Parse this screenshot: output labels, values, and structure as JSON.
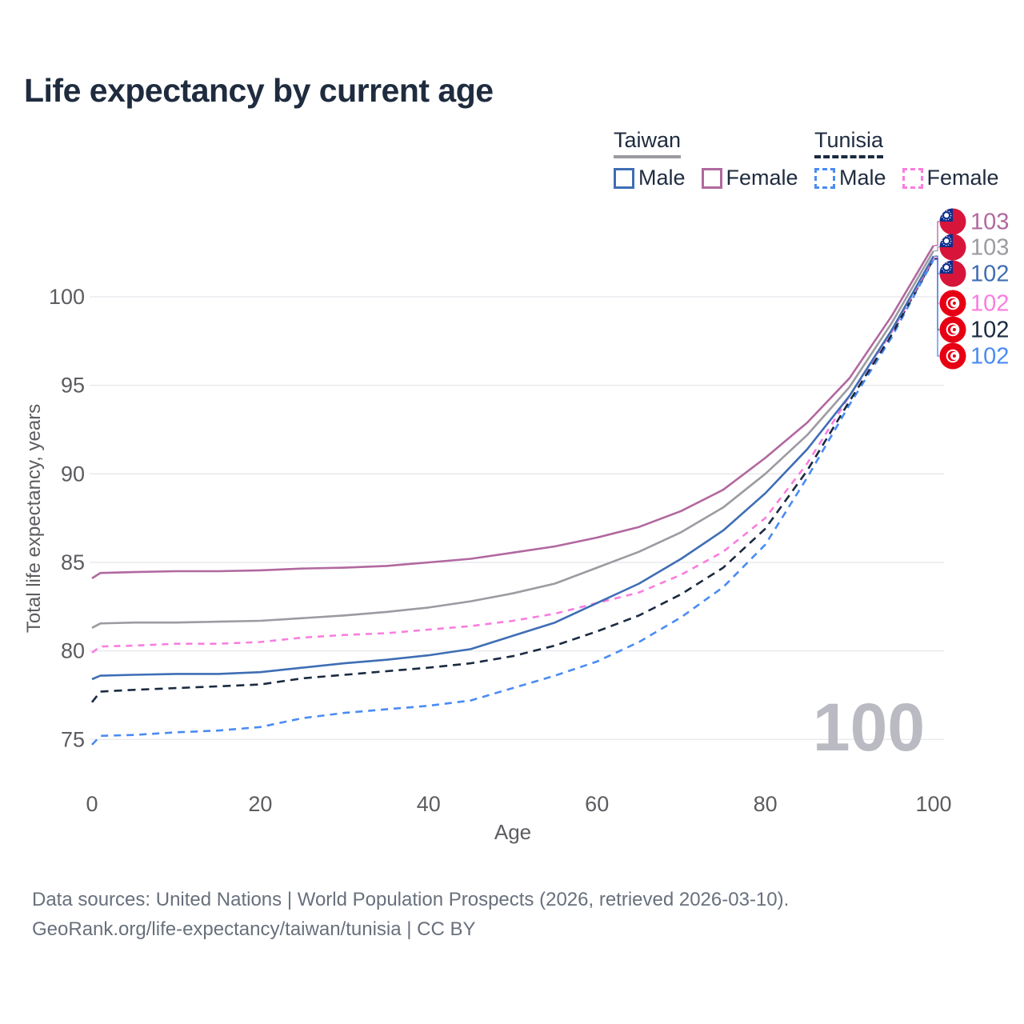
{
  "title": "Life expectancy by current age",
  "legend": {
    "groups": [
      {
        "label": "Taiwan",
        "underline_color": "#9b9ba1",
        "underline_style": "solid",
        "entries": [
          {
            "label": "Male",
            "color": "#3f6eb5",
            "style": "solid"
          },
          {
            "label": "Female",
            "color": "#b1689f",
            "style": "solid"
          }
        ]
      },
      {
        "label": "Tunisia",
        "underline_color": "#1a2a40",
        "underline_style": "dashed",
        "entries": [
          {
            "label": "Male",
            "color": "#4a8bf4",
            "style": "dashed"
          },
          {
            "label": "Female",
            "color": "#f97ddf",
            "style": "dashed"
          }
        ]
      }
    ]
  },
  "chart_data": {
    "type": "line",
    "title": "Life expectancy by current age",
    "xlabel": "Age",
    "ylabel": "Total life expectancy, years",
    "xlim": [
      0,
      100
    ],
    "ylim": [
      73.5,
      104.5
    ],
    "x_ticks": [
      0,
      20,
      40,
      60,
      80,
      100
    ],
    "y_ticks": [
      75,
      80,
      85,
      90,
      95,
      100
    ],
    "grid": "horizontal-only",
    "grid_color": "#e8e8ed",
    "tick_color": "#5c5c61",
    "watermark": "100",
    "watermark_color": "#babac2",
    "legend_position": "top-right",
    "x": [
      0,
      1,
      5,
      10,
      15,
      20,
      25,
      30,
      35,
      40,
      45,
      50,
      55,
      60,
      65,
      70,
      75,
      80,
      85,
      90,
      95,
      100
    ],
    "series": [
      {
        "name": "Taiwan Female",
        "country": "Taiwan",
        "sex": "Female",
        "color": "#b1689f",
        "dash": "solid",
        "flag": "tw",
        "end_label": "103",
        "values": [
          84.1,
          84.4,
          84.45,
          84.5,
          84.5,
          84.55,
          84.65,
          84.7,
          84.8,
          85.0,
          85.2,
          85.55,
          85.9,
          86.4,
          87.0,
          87.9,
          89.1,
          90.9,
          92.9,
          95.4,
          98.9,
          102.9
        ]
      },
      {
        "name": "Taiwan Both sexes",
        "country": "Taiwan",
        "sex": "Both",
        "color": "#9b9ba1",
        "dash": "solid",
        "flag": "tw",
        "end_label": "103",
        "values": [
          81.3,
          81.55,
          81.6,
          81.6,
          81.65,
          81.7,
          81.85,
          82.0,
          82.2,
          82.45,
          82.8,
          83.25,
          83.8,
          84.7,
          85.6,
          86.7,
          88.1,
          90.0,
          92.2,
          94.9,
          98.5,
          102.6
        ]
      },
      {
        "name": "Taiwan Male",
        "country": "Taiwan",
        "sex": "Male",
        "color": "#3f6eb5",
        "dash": "solid",
        "flag": "tw",
        "end_label": "102",
        "values": [
          78.4,
          78.6,
          78.65,
          78.7,
          78.7,
          78.8,
          79.05,
          79.3,
          79.5,
          79.75,
          80.1,
          80.85,
          81.6,
          82.7,
          83.8,
          85.2,
          86.8,
          88.9,
          91.4,
          94.4,
          98.1,
          102.3
        ]
      },
      {
        "name": "Tunisia Female",
        "country": "Tunisia",
        "sex": "Female",
        "color": "#f97ddf",
        "dash": "dashed",
        "flag": "tn",
        "end_label": "102",
        "values": [
          79.9,
          80.25,
          80.3,
          80.4,
          80.4,
          80.5,
          80.75,
          80.9,
          81.0,
          81.2,
          81.4,
          81.7,
          82.1,
          82.7,
          83.3,
          84.3,
          85.6,
          87.5,
          90.6,
          94.4,
          98.0,
          102.2
        ]
      },
      {
        "name": "Tunisia Both sexes",
        "country": "Tunisia",
        "sex": "Both",
        "color": "#1a2a40",
        "dash": "dashed",
        "flag": "tn",
        "end_label": "102",
        "values": [
          77.1,
          77.7,
          77.8,
          77.9,
          78.0,
          78.1,
          78.45,
          78.65,
          78.85,
          79.05,
          79.3,
          79.7,
          80.3,
          81.1,
          82.0,
          83.2,
          84.7,
          86.9,
          90.2,
          94.1,
          97.85,
          102.15
        ]
      },
      {
        "name": "Tunisia Male",
        "country": "Tunisia",
        "sex": "Male",
        "color": "#4a8bf4",
        "dash": "dashed",
        "flag": "tn",
        "end_label": "102",
        "values": [
          74.7,
          75.2,
          75.25,
          75.4,
          75.5,
          75.7,
          76.2,
          76.5,
          76.7,
          76.9,
          77.2,
          77.9,
          78.6,
          79.4,
          80.5,
          81.9,
          83.6,
          86.0,
          89.8,
          93.9,
          97.7,
          102.1
        ]
      }
    ],
    "flag_colors": {
      "tw_red": "#d7153a",
      "tw_blue": "#0b2e8e",
      "tn_red": "#e70013"
    }
  },
  "footer": {
    "line1": "Data sources: United Nations | World Population Prospects (2026, retrieved 2026-03-10).",
    "line2": "GeoRank.org/life-expectancy/taiwan/tunisia | CC BY"
  }
}
